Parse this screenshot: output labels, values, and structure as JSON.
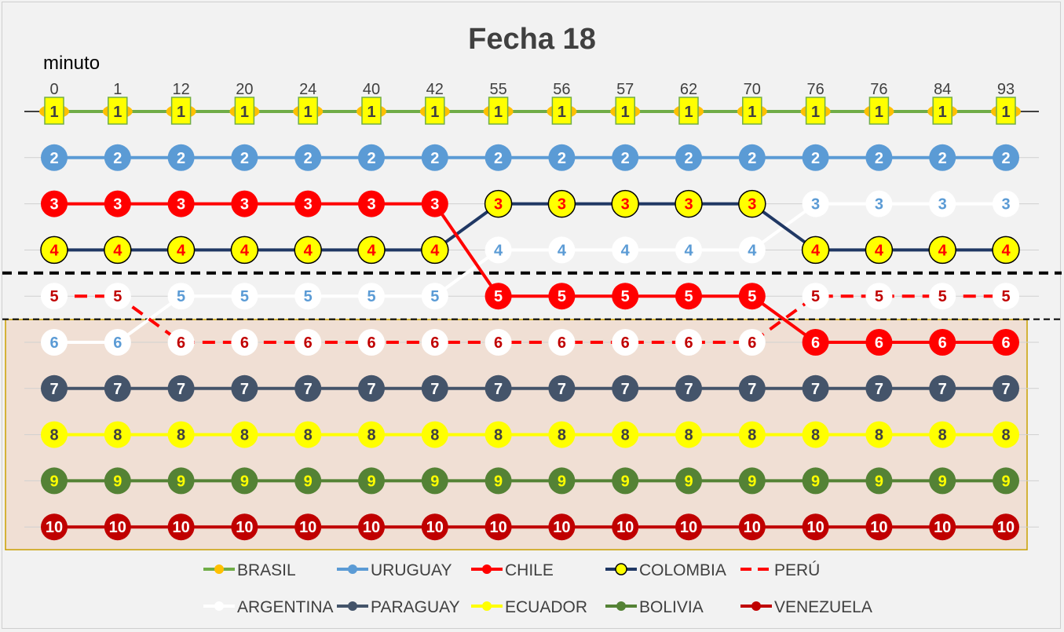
{
  "chart_data": {
    "type": "line",
    "title": "Fecha 18",
    "xlabel": "minuto",
    "ylabel": "",
    "x": [
      "0",
      "1",
      "12",
      "20",
      "24",
      "40",
      "42",
      "55",
      "56",
      "57",
      "62",
      "70",
      "76",
      "76",
      "84",
      "93"
    ],
    "ylim": [
      1,
      10
    ],
    "y_reversed": true,
    "grid": true,
    "legend_position": "bottom",
    "series": [
      {
        "name": "BRASIL",
        "color": "#70ad47",
        "marker_color": "#ffc000",
        "values": [
          1,
          1,
          1,
          1,
          1,
          1,
          1,
          1,
          1,
          1,
          1,
          1,
          1,
          1,
          1,
          1
        ]
      },
      {
        "name": "URUGUAY",
        "color": "#5b9bd5",
        "values": [
          2,
          2,
          2,
          2,
          2,
          2,
          2,
          2,
          2,
          2,
          2,
          2,
          2,
          2,
          2,
          2
        ]
      },
      {
        "name": "CHILE",
        "color": "#ff0000",
        "values": [
          3,
          3,
          3,
          3,
          3,
          3,
          3,
          5,
          5,
          5,
          5,
          5,
          6,
          6,
          6,
          6
        ]
      },
      {
        "name": "COLOMBIA",
        "color": "#203864",
        "marker_color": "#ffff00",
        "values": [
          4,
          4,
          4,
          4,
          4,
          4,
          4,
          3,
          3,
          3,
          3,
          3,
          4,
          4,
          4,
          4
        ]
      },
      {
        "name": "PERÚ",
        "color": "#ff0000",
        "dashed": true,
        "values": [
          5,
          5,
          6,
          6,
          6,
          6,
          6,
          6,
          6,
          6,
          6,
          6,
          5,
          5,
          5,
          5
        ]
      },
      {
        "name": "ARGENTINA",
        "color": "#ffffff",
        "values": [
          6,
          6,
          5,
          5,
          5,
          5,
          5,
          4,
          4,
          4,
          4,
          4,
          3,
          3,
          3,
          3
        ]
      },
      {
        "name": "PARAGUAY",
        "color": "#44546a",
        "values": [
          7,
          7,
          7,
          7,
          7,
          7,
          7,
          7,
          7,
          7,
          7,
          7,
          7,
          7,
          7,
          7
        ]
      },
      {
        "name": "ECUADOR",
        "color": "#ffff00",
        "values": [
          8,
          8,
          8,
          8,
          8,
          8,
          8,
          8,
          8,
          8,
          8,
          8,
          8,
          8,
          8,
          8
        ]
      },
      {
        "name": "BOLIVIA",
        "color": "#548235",
        "values": [
          9,
          9,
          9,
          9,
          9,
          9,
          9,
          9,
          9,
          9,
          9,
          9,
          9,
          9,
          9,
          9
        ]
      },
      {
        "name": "VENEZUELA",
        "color": "#c00000",
        "values": [
          10,
          10,
          10,
          10,
          10,
          10,
          10,
          10,
          10,
          10,
          10,
          10,
          10,
          10,
          10,
          10
        ]
      }
    ],
    "position_labels": [
      "1",
      "2",
      "3",
      "4",
      "5",
      "6",
      "7",
      "8",
      "9",
      "10"
    ]
  }
}
